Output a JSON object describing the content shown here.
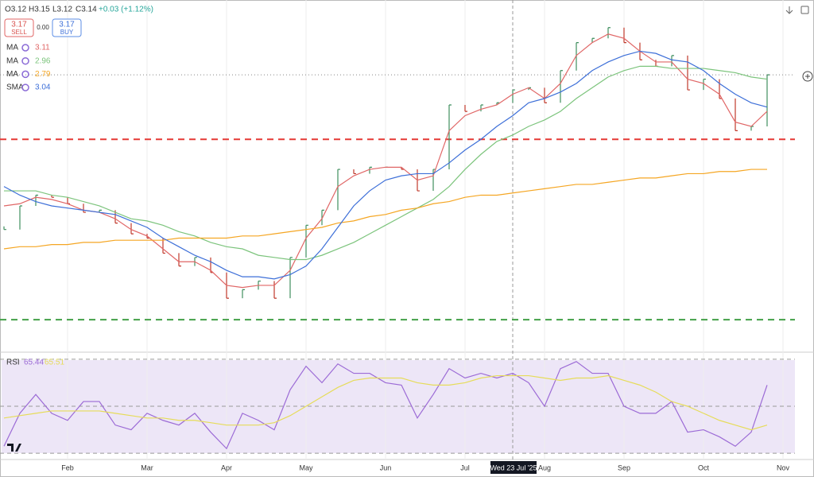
{
  "header": {
    "open": "O3.12",
    "high": "H3.15",
    "low": "L3.12",
    "close": "C3.14",
    "change": "+0.03 (+1.12%)",
    "sell_price": "3.17",
    "sell_label": "SELL",
    "spread": "0.00",
    "buy_price": "3.17",
    "buy_label": "BUY"
  },
  "crosshair": {
    "label": "Wed 23 Jul '25"
  },
  "chart_data": [
    {
      "type": "ohlc",
      "categories": [
        null,
        null,
        null,
        null,
        "Feb",
        null,
        null,
        null,
        null,
        "Mar",
        null,
        null,
        null,
        null,
        "Apr",
        null,
        null,
        null,
        null,
        "May",
        null,
        null,
        null,
        null,
        "Jun",
        null,
        null,
        null,
        null,
        "Jul",
        null,
        null,
        null,
        null,
        "Aug",
        null,
        null,
        null,
        null,
        "Sep",
        null,
        null,
        null,
        null,
        "Oct",
        null,
        null,
        null,
        null,
        "Nov"
      ],
      "ylim": [
        1.86,
        3.47
      ],
      "grid": true,
      "levels": [
        {
          "value": 2.84,
          "color": "#e53935"
        },
        {
          "value": 2.0,
          "color": "#43a047"
        }
      ],
      "series": [
        {
          "color": "#3f8f5f",
          "down_color": "#c0392b",
          "style": "bars",
          "values": [
            2.42,
            2.53,
            2.58,
            2.57,
            2.54,
            2.5,
            2.51,
            2.45,
            2.4,
            2.38,
            2.31,
            2.25,
            2.29,
            2.22,
            2.1,
            2.14,
            2.18,
            2.1,
            2.29,
            2.44,
            2.51,
            2.7,
            2.68,
            2.71,
            2.71,
            2.7,
            2.6,
            2.7,
            3.0,
            2.97,
            3.0,
            3.01,
            3.07,
            3.08,
            3.01,
            3.16,
            3.29,
            3.31,
            3.36,
            3.29,
            3.21,
            3.18,
            3.23,
            3.07,
            3.12,
            3.03,
            2.88,
            2.9,
            3.14,
            null
          ]
        },
        {
          "name": "MA",
          "legend_value": "3.11",
          "color": "#e06666",
          "style": "line",
          "values": [
            2.53,
            2.54,
            2.57,
            2.56,
            2.54,
            2.51,
            2.5,
            2.47,
            2.42,
            2.39,
            2.33,
            2.27,
            2.27,
            2.23,
            2.16,
            2.15,
            2.16,
            2.16,
            2.23,
            2.38,
            2.47,
            2.62,
            2.67,
            2.7,
            2.71,
            2.71,
            2.65,
            2.67,
            2.88,
            2.95,
            2.98,
            3.0,
            3.05,
            3.08,
            3.03,
            3.1,
            3.23,
            3.29,
            3.33,
            3.31,
            3.25,
            3.2,
            3.2,
            3.12,
            3.1,
            3.05,
            2.92,
            2.9,
            2.97,
            null
          ]
        },
        {
          "name": "MA",
          "legend_value": "2.96",
          "color": "#7cc47c",
          "style": "line",
          "values": [
            2.6,
            2.6,
            2.6,
            2.58,
            2.57,
            2.55,
            2.53,
            2.5,
            2.47,
            2.46,
            2.44,
            2.41,
            2.39,
            2.36,
            2.34,
            2.33,
            2.3,
            2.29,
            2.28,
            2.28,
            2.3,
            2.33,
            2.36,
            2.4,
            2.44,
            2.48,
            2.52,
            2.56,
            2.62,
            2.7,
            2.77,
            2.83,
            2.86,
            2.9,
            2.93,
            2.97,
            3.03,
            3.08,
            3.13,
            3.16,
            3.18,
            3.18,
            3.17,
            3.17,
            3.17,
            3.16,
            3.15,
            3.13,
            3.12,
            null
          ]
        },
        {
          "name": "MA",
          "legend_value": "2.79",
          "color": "#f5a623",
          "style": "line",
          "values": [
            2.33,
            2.34,
            2.34,
            2.35,
            2.35,
            2.36,
            2.36,
            2.37,
            2.37,
            2.37,
            2.37,
            2.38,
            2.38,
            2.38,
            2.38,
            2.39,
            2.39,
            2.4,
            2.41,
            2.42,
            2.43,
            2.45,
            2.46,
            2.48,
            2.49,
            2.51,
            2.52,
            2.54,
            2.55,
            2.57,
            2.58,
            2.58,
            2.59,
            2.6,
            2.61,
            2.62,
            2.63,
            2.63,
            2.64,
            2.65,
            2.66,
            2.66,
            2.67,
            2.68,
            2.68,
            2.69,
            2.69,
            2.7,
            2.7,
            null
          ]
        },
        {
          "name": "SMA",
          "legend_value": "3.04",
          "color": "#3d6fd8",
          "style": "line",
          "values": [
            2.62,
            2.58,
            2.55,
            2.53,
            2.52,
            2.51,
            2.5,
            2.49,
            2.46,
            2.43,
            2.38,
            2.34,
            2.3,
            2.27,
            2.23,
            2.2,
            2.2,
            2.19,
            2.21,
            2.25,
            2.33,
            2.43,
            2.53,
            2.6,
            2.65,
            2.67,
            2.68,
            2.68,
            2.73,
            2.79,
            2.84,
            2.9,
            2.95,
            3.01,
            3.03,
            3.06,
            3.1,
            3.16,
            3.2,
            3.23,
            3.25,
            3.24,
            3.21,
            3.2,
            3.16,
            3.1,
            3.05,
            3.01,
            2.99,
            null
          ]
        }
      ]
    },
    {
      "type": "line",
      "title": "RSI",
      "ylim": [
        26,
        74
      ],
      "levels": [
        70,
        50,
        30
      ],
      "series": [
        {
          "legend_value": "65.44",
          "color": "#9c6bd6",
          "values": [
            33,
            47,
            55,
            47,
            44,
            52,
            52,
            42,
            40,
            47,
            44,
            42,
            47,
            39,
            32,
            47,
            44,
            40,
            57,
            67,
            60,
            68,
            64,
            64,
            60,
            59,
            45,
            55,
            66,
            62,
            64,
            62,
            64,
            60,
            50,
            66,
            69,
            64,
            64,
            50,
            47,
            47,
            52,
            39,
            40,
            37,
            33,
            39,
            59,
            null
          ]
        },
        {
          "legend_value": "65.51",
          "color": "#e6dc5a",
          "values": [
            45,
            46,
            47,
            48,
            48,
            48,
            48,
            47,
            46,
            45,
            45,
            44,
            44,
            43,
            42,
            42,
            42,
            43,
            46,
            50,
            54,
            58,
            61,
            62,
            62,
            62,
            60,
            59,
            59,
            60,
            62,
            63,
            63,
            63,
            62,
            61,
            62,
            62,
            63,
            61,
            59,
            56,
            52,
            50,
            47,
            44,
            42,
            40,
            42,
            null
          ]
        }
      ]
    }
  ]
}
